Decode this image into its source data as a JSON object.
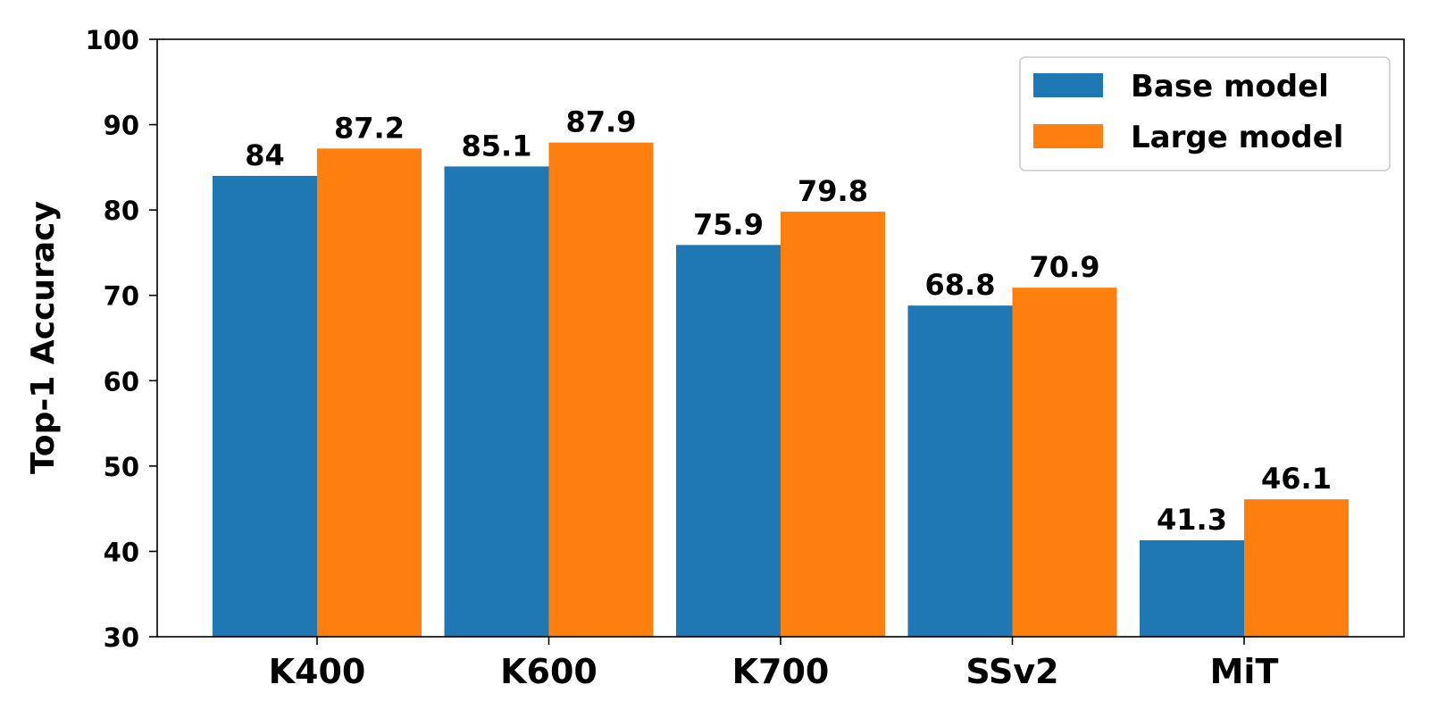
{
  "chart_data": {
    "type": "bar",
    "title": "",
    "xlabel": "",
    "ylabel": "Top-1 Accuracy",
    "categories": [
      "K400",
      "K600",
      "K700",
      "SSv2",
      "MiT"
    ],
    "series": [
      {
        "name": "Base model",
        "color": "#1f77b4",
        "values": [
          84,
          85.1,
          75.9,
          68.8,
          41.3
        ],
        "labels": [
          "84",
          "85.1",
          "75.9",
          "68.8",
          "41.3"
        ]
      },
      {
        "name": "Large model",
        "color": "#ff7f0e",
        "values": [
          87.2,
          87.9,
          79.8,
          70.9,
          46.1
        ],
        "labels": [
          "87.2",
          "87.9",
          "79.8",
          "70.9",
          "46.1"
        ]
      }
    ],
    "ylim": [
      30,
      100
    ],
    "yticks": [
      30,
      40,
      50,
      60,
      70,
      80,
      90,
      100
    ],
    "grid": false,
    "legend_position": "top-right"
  }
}
